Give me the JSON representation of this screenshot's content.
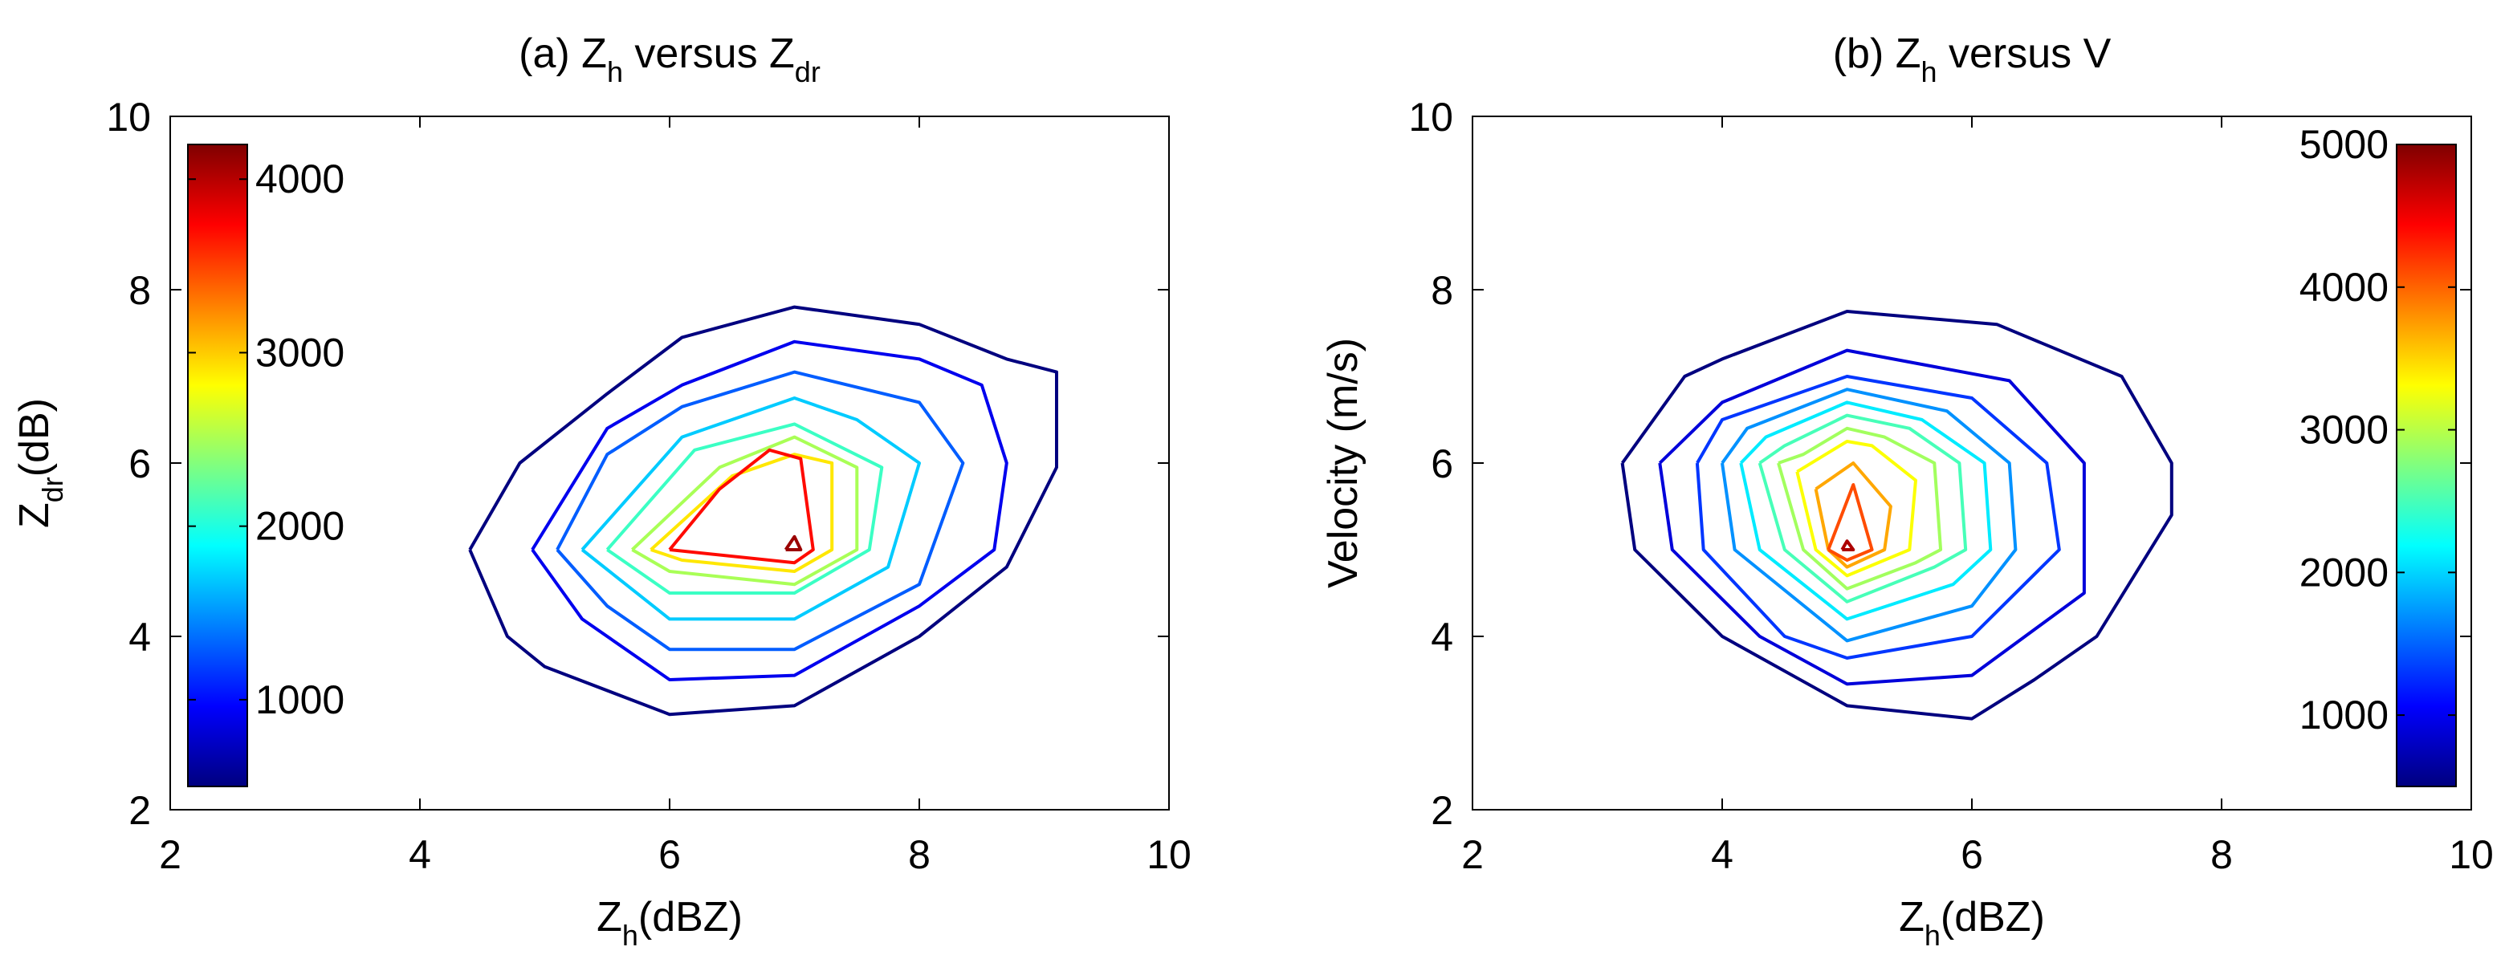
{
  "chart_data": [
    {
      "type": "contour",
      "title": {
        "main": "(a) Z",
        "sub": "h",
        "mid": " versus Z",
        "sub2": "dr"
      },
      "xlabel": {
        "main": "Z",
        "sub": "h",
        "rest": "(dBZ)"
      },
      "ylabel": {
        "main": "Z",
        "sub": "dr",
        "rest": "(dB)"
      },
      "xlim": [
        2,
        10
      ],
      "ylim": [
        2,
        10
      ],
      "xticks": [
        "2",
        "4",
        "6",
        "8",
        "10"
      ],
      "yticks": [
        "2",
        "4",
        "6",
        "8",
        "10"
      ],
      "colorbar": {
        "position": "inside-left",
        "min": 500,
        "max": 4200,
        "ticks": [
          "1000",
          "2000",
          "3000",
          "4000"
        ]
      },
      "contours": [
        {
          "level": 500,
          "points": [
            [
              4.4,
              5.0
            ],
            [
              4.7,
              4.0
            ],
            [
              5.0,
              3.65
            ],
            [
              6.0,
              3.1
            ],
            [
              7.0,
              3.2
            ],
            [
              8.0,
              4.0
            ],
            [
              8.7,
              4.8
            ],
            [
              9.1,
              5.95
            ],
            [
              9.1,
              7.05
            ],
            [
              8.7,
              7.2
            ],
            [
              8.0,
              7.6
            ],
            [
              7.0,
              7.8
            ],
            [
              6.1,
              7.45
            ],
            [
              5.5,
              6.8
            ],
            [
              4.8,
              6.0
            ],
            [
              4.4,
              5.0
            ]
          ]
        },
        {
          "level": 900,
          "points": [
            [
              4.9,
              5.0
            ],
            [
              5.3,
              4.2
            ],
            [
              6.0,
              3.5
            ],
            [
              7.0,
              3.55
            ],
            [
              8.0,
              4.35
            ],
            [
              8.6,
              5.0
            ],
            [
              8.7,
              6.0
            ],
            [
              8.5,
              6.9
            ],
            [
              8.0,
              7.2
            ],
            [
              7.0,
              7.4
            ],
            [
              6.1,
              6.9
            ],
            [
              5.5,
              6.4
            ],
            [
              4.9,
              5.0
            ]
          ]
        },
        {
          "level": 1300,
          "points": [
            [
              5.1,
              5.0
            ],
            [
              5.5,
              4.35
            ],
            [
              6.0,
              3.85
            ],
            [
              7.0,
              3.85
            ],
            [
              8.0,
              4.6
            ],
            [
              8.35,
              6.0
            ],
            [
              8.0,
              6.7
            ],
            [
              7.0,
              7.05
            ],
            [
              6.1,
              6.65
            ],
            [
              5.5,
              6.1
            ],
            [
              5.1,
              5.0
            ]
          ]
        },
        {
          "level": 1700,
          "points": [
            [
              5.3,
              5.0
            ],
            [
              6.0,
              4.2
            ],
            [
              7.0,
              4.2
            ],
            [
              7.75,
              4.8
            ],
            [
              8.0,
              6.0
            ],
            [
              7.5,
              6.5
            ],
            [
              7.0,
              6.75
            ],
            [
              6.1,
              6.3
            ],
            [
              5.3,
              5.0
            ]
          ]
        },
        {
          "level": 2100,
          "points": [
            [
              5.5,
              5.0
            ],
            [
              6.0,
              4.5
            ],
            [
              7.0,
              4.5
            ],
            [
              7.6,
              5.0
            ],
            [
              7.7,
              5.95
            ],
            [
              7.0,
              6.45
            ],
            [
              6.2,
              6.15
            ],
            [
              5.5,
              5.0
            ]
          ]
        },
        {
          "level": 2500,
          "points": [
            [
              5.7,
              5.0
            ],
            [
              6.0,
              4.75
            ],
            [
              7.0,
              4.6
            ],
            [
              7.5,
              5.0
            ],
            [
              7.5,
              5.95
            ],
            [
              7.0,
              6.3
            ],
            [
              6.4,
              5.95
            ],
            [
              5.7,
              5.0
            ]
          ]
        },
        {
          "level": 2900,
          "points": [
            [
              5.85,
              5.0
            ],
            [
              6.1,
              4.88
            ],
            [
              7.0,
              4.75
            ],
            [
              7.3,
              5.0
            ],
            [
              7.3,
              6.0
            ],
            [
              7.0,
              6.1
            ],
            [
              6.5,
              5.85
            ],
            [
              5.85,
              5.0
            ]
          ]
        },
        {
          "level": 3700,
          "points": [
            [
              6.0,
              5.0
            ],
            [
              7.0,
              4.85
            ],
            [
              7.15,
              5.0
            ],
            [
              7.05,
              6.05
            ],
            [
              6.8,
              6.15
            ],
            [
              6.4,
              5.7
            ],
            [
              6.0,
              5.0
            ]
          ]
        },
        {
          "level": 4100,
          "points": [
            [
              6.93,
              5.0
            ],
            [
              7.05,
              5.0
            ],
            [
              7.0,
              5.15
            ],
            [
              6.93,
              5.0
            ]
          ]
        }
      ]
    },
    {
      "type": "contour",
      "title": {
        "main": "(b) Z",
        "sub": "h",
        "mid": " versus V",
        "sub2": ""
      },
      "xlabel": {
        "main": "Z",
        "sub": "h",
        "rest": "(dBZ)"
      },
      "ylabel": {
        "main": "Velocity (m/s)",
        "sub": "",
        "rest": ""
      },
      "xlim": [
        2,
        10
      ],
      "ylim": [
        2,
        10
      ],
      "xticks": [
        "2",
        "4",
        "6",
        "8",
        "10"
      ],
      "yticks": [
        "2",
        "4",
        "6",
        "8",
        "10"
      ],
      "colorbar": {
        "position": "inside-right",
        "min": 500,
        "max": 5000,
        "ticks": [
          "1000",
          "2000",
          "3000",
          "4000",
          "5000"
        ]
      },
      "contours": [
        {
          "level": 500,
          "points": [
            [
              3.2,
              6.0
            ],
            [
              3.3,
              5.0
            ],
            [
              4.0,
              4.0
            ],
            [
              5.0,
              3.2
            ],
            [
              6.0,
              3.05
            ],
            [
              6.5,
              3.5
            ],
            [
              7.0,
              4.0
            ],
            [
              7.6,
              5.4
            ],
            [
              7.6,
              6.0
            ],
            [
              7.2,
              7.0
            ],
            [
              6.2,
              7.6
            ],
            [
              5.0,
              7.75
            ],
            [
              4.0,
              7.2
            ],
            [
              3.7,
              7.0
            ],
            [
              3.2,
              6.0
            ]
          ]
        },
        {
          "level": 900,
          "points": [
            [
              3.5,
              6.0
            ],
            [
              3.6,
              5.0
            ],
            [
              4.3,
              4.0
            ],
            [
              5.0,
              3.45
            ],
            [
              6.0,
              3.55
            ],
            [
              6.9,
              4.5
            ],
            [
              6.9,
              6.0
            ],
            [
              6.3,
              6.95
            ],
            [
              5.0,
              7.3
            ],
            [
              4.0,
              6.7
            ],
            [
              3.5,
              6.0
            ]
          ]
        },
        {
          "level": 1300,
          "points": [
            [
              3.8,
              6.0
            ],
            [
              3.85,
              5.0
            ],
            [
              4.5,
              4.0
            ],
            [
              5.0,
              3.75
            ],
            [
              6.0,
              4.0
            ],
            [
              6.7,
              5.0
            ],
            [
              6.6,
              6.0
            ],
            [
              6.0,
              6.75
            ],
            [
              5.0,
              7.0
            ],
            [
              4.0,
              6.5
            ],
            [
              3.8,
              6.0
            ]
          ]
        },
        {
          "level": 1700,
          "points": [
            [
              4.0,
              6.0
            ],
            [
              4.1,
              5.0
            ],
            [
              5.0,
              3.95
            ],
            [
              6.0,
              4.35
            ],
            [
              6.35,
              5.0
            ],
            [
              6.3,
              6.0
            ],
            [
              5.8,
              6.6
            ],
            [
              5.0,
              6.85
            ],
            [
              4.2,
              6.4
            ],
            [
              4.0,
              6.0
            ]
          ]
        },
        {
          "level": 2100,
          "points": [
            [
              4.15,
              6.0
            ],
            [
              4.3,
              5.0
            ],
            [
              5.0,
              4.2
            ],
            [
              5.85,
              4.6
            ],
            [
              6.15,
              5.0
            ],
            [
              6.1,
              6.0
            ],
            [
              5.6,
              6.5
            ],
            [
              5.0,
              6.7
            ],
            [
              4.35,
              6.3
            ],
            [
              4.15,
              6.0
            ]
          ]
        },
        {
          "level": 2500,
          "points": [
            [
              4.3,
              6.0
            ],
            [
              4.5,
              5.0
            ],
            [
              5.0,
              4.4
            ],
            [
              5.7,
              4.8
            ],
            [
              5.95,
              5.0
            ],
            [
              5.9,
              6.0
            ],
            [
              5.5,
              6.4
            ],
            [
              5.0,
              6.55
            ],
            [
              4.5,
              6.2
            ],
            [
              4.3,
              6.0
            ]
          ]
        },
        {
          "level": 2900,
          "points": [
            [
              4.45,
              6.0
            ],
            [
              4.65,
              5.0
            ],
            [
              5.0,
              4.55
            ],
            [
              5.55,
              4.85
            ],
            [
              5.75,
              5.0
            ],
            [
              5.7,
              6.0
            ],
            [
              5.3,
              6.3
            ],
            [
              5.0,
              6.4
            ],
            [
              4.65,
              6.1
            ],
            [
              4.45,
              6.0
            ]
          ]
        },
        {
          "level": 3300,
          "points": [
            [
              4.6,
              5.9
            ],
            [
              4.75,
              5.0
            ],
            [
              5.0,
              4.7
            ],
            [
              5.5,
              5.0
            ],
            [
              5.55,
              5.8
            ],
            [
              5.2,
              6.2
            ],
            [
              5.0,
              6.25
            ],
            [
              4.6,
              5.9
            ]
          ]
        },
        {
          "level": 3700,
          "points": [
            [
              4.75,
              5.7
            ],
            [
              4.85,
              5.0
            ],
            [
              5.0,
              4.8
            ],
            [
              5.3,
              5.0
            ],
            [
              5.35,
              5.5
            ],
            [
              5.05,
              6.0
            ],
            [
              4.75,
              5.7
            ]
          ]
        },
        {
          "level": 4100,
          "points": [
            [
              4.85,
              5.0
            ],
            [
              5.0,
              4.88
            ],
            [
              5.2,
              5.0
            ],
            [
              5.05,
              5.75
            ],
            [
              4.85,
              5.0
            ]
          ]
        },
        {
          "level": 4800,
          "points": [
            [
              4.96,
              5.0
            ],
            [
              5.05,
              5.0
            ],
            [
              5.0,
              5.1
            ],
            [
              4.96,
              5.0
            ]
          ]
        }
      ]
    }
  ]
}
